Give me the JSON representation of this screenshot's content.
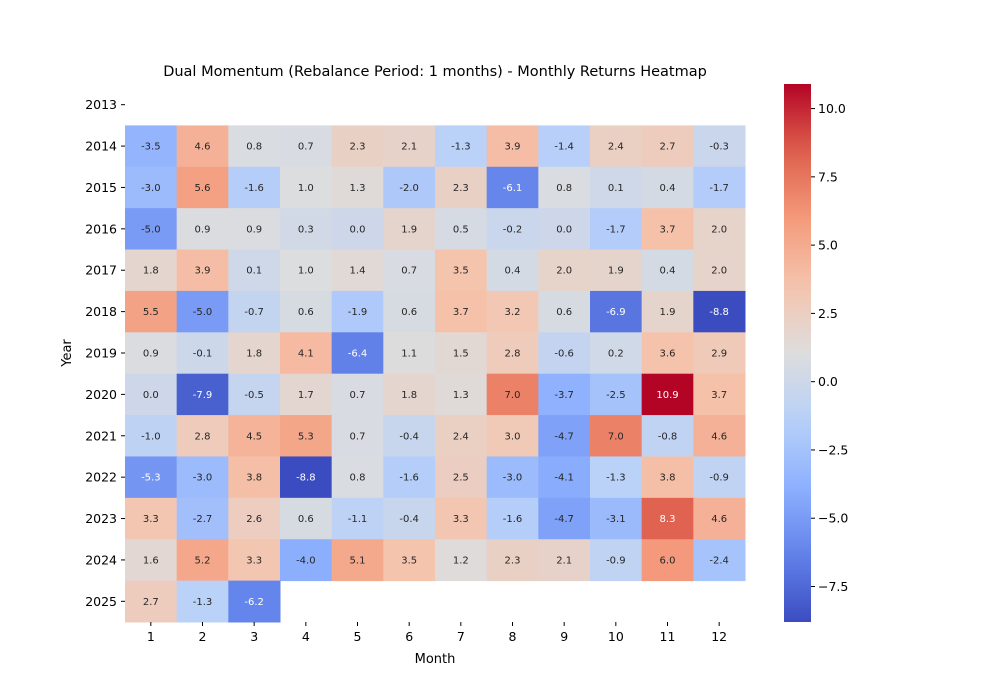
{
  "chart_data": {
    "type": "heatmap",
    "title": "Dual Momentum (Rebalance Period: 1 months) - Monthly Returns Heatmap",
    "xlabel": "Month",
    "ylabel": "Year",
    "x_categories": [
      "1",
      "2",
      "3",
      "4",
      "5",
      "6",
      "7",
      "8",
      "9",
      "10",
      "11",
      "12"
    ],
    "y_categories": [
      "2013",
      "2014",
      "2015",
      "2016",
      "2017",
      "2018",
      "2019",
      "2020",
      "2021",
      "2022",
      "2023",
      "2024",
      "2025"
    ],
    "values": [
      [
        null,
        null,
        null,
        null,
        null,
        null,
        null,
        null,
        null,
        null,
        null,
        null
      ],
      [
        -3.5,
        4.6,
        0.8,
        0.7,
        2.3,
        2.1,
        -1.3,
        3.9,
        -1.4,
        2.4,
        2.7,
        -0.3
      ],
      [
        -3.0,
        5.6,
        -1.6,
        1.0,
        1.3,
        -2.0,
        2.3,
        -6.1,
        0.8,
        0.1,
        0.4,
        -1.7
      ],
      [
        -5.0,
        0.9,
        0.9,
        0.3,
        0.0,
        1.9,
        0.5,
        -0.2,
        0.0,
        -1.7,
        3.7,
        2.0
      ],
      [
        1.8,
        3.9,
        0.1,
        1.0,
        1.4,
        0.7,
        3.5,
        0.4,
        2.0,
        1.9,
        0.4,
        2.0
      ],
      [
        5.5,
        -5.0,
        -0.7,
        0.6,
        -1.9,
        0.6,
        3.7,
        3.2,
        0.6,
        -6.9,
        1.9,
        -8.8
      ],
      [
        0.9,
        -0.1,
        1.8,
        4.1,
        -6.4,
        1.1,
        1.5,
        2.8,
        -0.6,
        0.2,
        3.6,
        2.9
      ],
      [
        -0.0,
        -7.9,
        -0.5,
        1.7,
        0.7,
        1.8,
        1.3,
        7.0,
        -3.7,
        -2.5,
        10.9,
        3.7
      ],
      [
        -1.0,
        2.8,
        4.5,
        5.3,
        0.7,
        -0.4,
        2.4,
        3.0,
        -4.7,
        7.0,
        -0.8,
        4.6
      ],
      [
        -5.3,
        -3.0,
        3.8,
        -8.8,
        0.8,
        -1.6,
        2.5,
        -3.0,
        -4.1,
        -1.3,
        3.8,
        -0.9
      ],
      [
        3.3,
        -2.7,
        2.6,
        0.6,
        -1.1,
        -0.4,
        3.3,
        -1.6,
        -4.7,
        -3.1,
        8.3,
        4.6
      ],
      [
        1.6,
        5.2,
        3.3,
        -4.0,
        5.1,
        3.5,
        1.2,
        2.3,
        2.1,
        -0.9,
        6.0,
        -2.4
      ],
      [
        2.7,
        -1.3,
        -6.2,
        null,
        null,
        null,
        null,
        null,
        null,
        null,
        null,
        null
      ]
    ],
    "colormap": "coolwarm",
    "vmin": -8.8,
    "vmax": 10.9,
    "colorbar_ticks": [
      -7.5,
      -5.0,
      -2.5,
      0.0,
      2.5,
      5.0,
      7.5,
      10.0
    ],
    "colorbar_tick_labels": [
      "−7.5",
      "−5.0",
      "−2.5",
      "0.0",
      "2.5",
      "5.0",
      "7.5",
      "10.0"
    ],
    "annotation_format": "0.1f",
    "grid": false
  }
}
